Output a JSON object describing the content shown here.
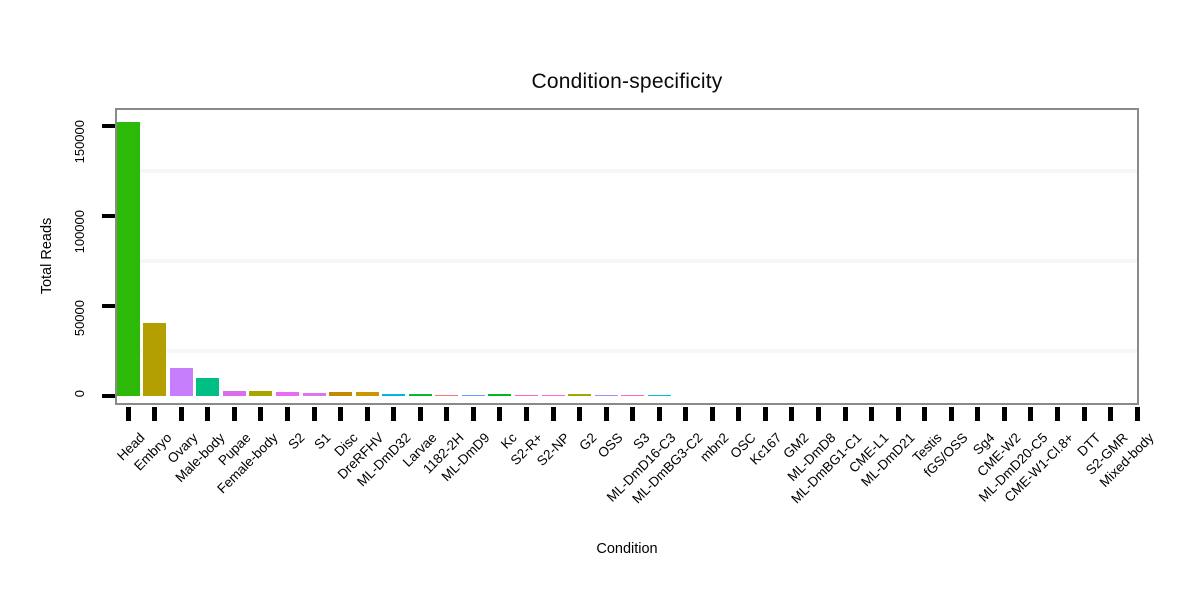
{
  "chart_data": {
    "type": "bar",
    "title": "Condition-specificity",
    "xlabel": "Condition",
    "ylabel": "Total Reads",
    "ylim": [
      0,
      160000
    ],
    "yticks": [
      0,
      50000,
      100000,
      150000
    ],
    "ytick_labels": [
      "0",
      "50000",
      "100000",
      "150000"
    ],
    "minor_gridlines": [
      25000,
      75000,
      125000
    ],
    "grid": "faint minor gridlines only, no major gridlines",
    "legend_position": "none",
    "frame_color": "#8a8a8a",
    "gridline_color": "#f7f7f7",
    "categories": [
      "Head",
      "Embryo",
      "Ovary",
      "Male-body",
      "Pupae",
      "Female-body",
      "S2",
      "S1",
      "Disc",
      "DreRFHV",
      "ML-DmD32",
      "Larvae",
      "1182-2H",
      "ML-DmD9",
      "Kc",
      "S2-R+",
      "S2-NP",
      "G2",
      "OSS",
      "S3",
      "ML-DmD16-C3",
      "ML-DmBG3-C2",
      "mbn2",
      "OSC",
      "Kc167",
      "GM2",
      "ML-DmD8",
      "ML-DmBG1-C1",
      "CME-L1",
      "ML-DmD21",
      "Testis",
      "fGS/OSS",
      "Sg4",
      "CME-W2",
      "ML-DmD20-C5",
      "CME-W1-Cl.8+",
      "DTT",
      "S2-GMR",
      "Mixed-body"
    ],
    "values": [
      152200,
      40800,
      15800,
      10200,
      2800,
      2600,
      2400,
      1900,
      2400,
      2300,
      900,
      1000,
      800,
      800,
      900,
      800,
      700,
      900,
      800,
      800,
      700,
      0,
      0,
      0,
      0,
      0,
      0,
      0,
      0,
      0,
      0,
      0,
      0,
      0,
      0,
      0,
      0,
      0,
      0
    ],
    "bar_colors": [
      "#2DB908",
      "#B3A000",
      "#C77EFC",
      "#00BF85",
      "#D96FE8",
      "#A9A400",
      "#E86BF0",
      "#D877EC",
      "#C18A00",
      "#CB9600",
      "#00B3E9",
      "#00BA38",
      "#F8766D",
      "#6E9BFF",
      "#00B91F",
      "#FF63C2",
      "#FF6EC4",
      "#9DA800",
      "#A78AFF",
      "#FF69B8",
      "#00BEDB",
      "#C0C0C0",
      "#C0C0C0",
      "#C0C0C0",
      "#C0C0C0",
      "#C0C0C0",
      "#C0C0C0",
      "#C0C0C0",
      "#C0C0C0",
      "#C0C0C0",
      "#C0C0C0",
      "#C0C0C0",
      "#C0C0C0",
      "#C0C0C0",
      "#C0C0C0",
      "#C0C0C0",
      "#C0C0C0",
      "#C0C0C0",
      "#C0C0C0"
    ]
  }
}
